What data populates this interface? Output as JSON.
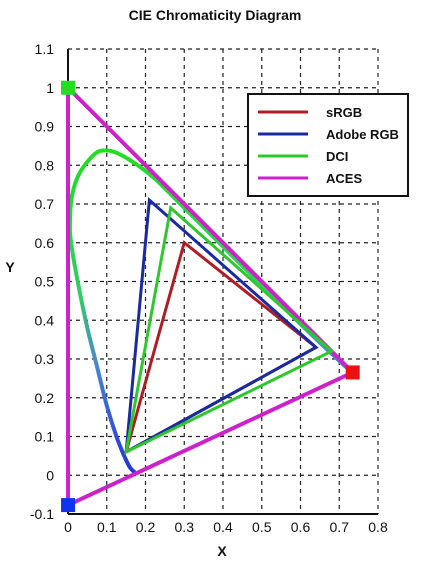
{
  "chart_data": {
    "type": "line",
    "title": "CIE Chromaticity Diagram",
    "xlabel": "X",
    "ylabel": "Y",
    "xlim": [
      0,
      0.8
    ],
    "ylim": [
      -0.1,
      1.1
    ],
    "xticks": [
      "0",
      "0.1",
      "0.2",
      "0.3",
      "0.4",
      "0.5",
      "0.6",
      "0.7",
      "0.8"
    ],
    "yticks": [
      "-0.1",
      "0",
      "0.1",
      "0.2",
      "0.3",
      "0.4",
      "0.5",
      "0.6",
      "0.7",
      "0.8",
      "0.9",
      "1",
      "1.1"
    ],
    "grid": true,
    "legend_position": "top-right",
    "spectral_locus": [
      [
        0.175,
        0.005
      ],
      [
        0.16,
        0.02
      ],
      [
        0.145,
        0.05
      ],
      [
        0.125,
        0.1
      ],
      [
        0.1,
        0.18
      ],
      [
        0.075,
        0.28
      ],
      [
        0.05,
        0.38
      ],
      [
        0.025,
        0.5
      ],
      [
        0.008,
        0.6
      ],
      [
        0.005,
        0.65
      ],
      [
        0.01,
        0.72
      ],
      [
        0.03,
        0.78
      ],
      [
        0.07,
        0.83
      ],
      [
        0.1,
        0.838
      ],
      [
        0.13,
        0.83
      ],
      [
        0.18,
        0.8
      ],
      [
        0.23,
        0.76
      ],
      [
        0.3,
        0.69
      ],
      [
        0.4,
        0.59
      ],
      [
        0.5,
        0.49
      ],
      [
        0.6,
        0.39
      ],
      [
        0.7,
        0.295
      ],
      [
        0.735,
        0.265
      ]
    ],
    "series": [
      {
        "name": "sRGB",
        "color": "#b01c24",
        "points": [
          [
            0.64,
            0.33
          ],
          [
            0.3,
            0.6
          ],
          [
            0.15,
            0.06
          ]
        ]
      },
      {
        "name": "Adobe RGB",
        "color": "#1a2aa0",
        "points": [
          [
            0.64,
            0.33
          ],
          [
            0.21,
            0.71
          ],
          [
            0.15,
            0.06
          ]
        ]
      },
      {
        "name": "DCI",
        "color": "#2ec82e",
        "points": [
          [
            0.68,
            0.32
          ],
          [
            0.265,
            0.69
          ],
          [
            0.15,
            0.06
          ]
        ]
      },
      {
        "name": "ACES",
        "color": "#cc22cc",
        "points": [
          [
            0.7347,
            0.2653
          ],
          [
            0.0,
            1.0
          ],
          [
            0.0001,
            -0.077
          ]
        ]
      }
    ],
    "primary_markers": [
      {
        "name": "green-primary",
        "color": "#22dd22",
        "x": 0.0,
        "y": 1.0
      },
      {
        "name": "red-primary",
        "color": "#ee1111",
        "x": 0.7347,
        "y": 0.2653
      },
      {
        "name": "blue-primary",
        "color": "#1133ee",
        "x": 0.0001,
        "y": -0.077
      }
    ]
  }
}
